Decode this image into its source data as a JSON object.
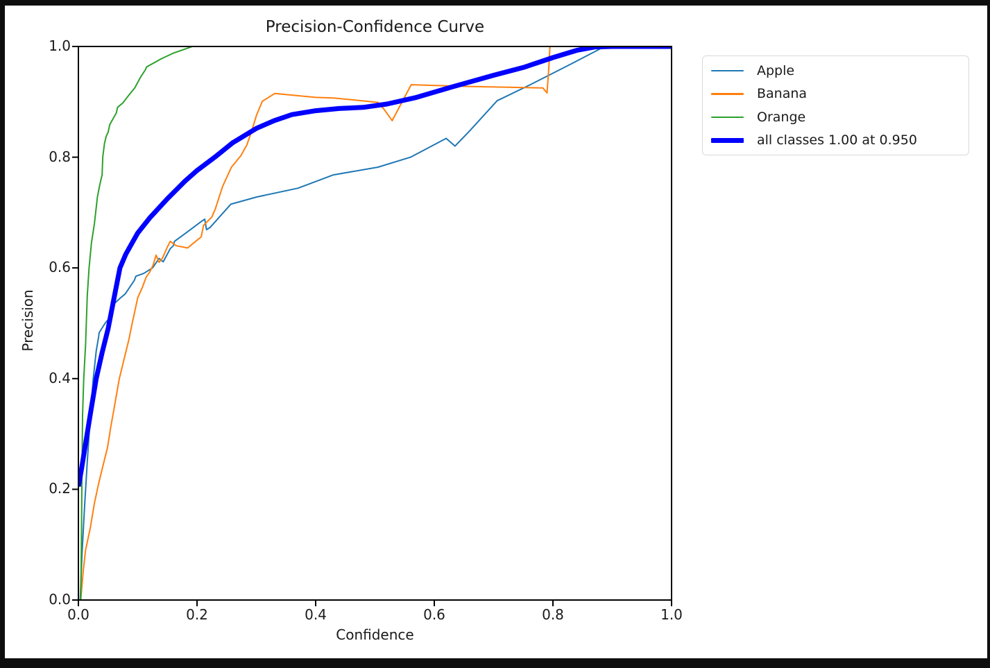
{
  "window": {
    "outer_background": "#0e0e0e",
    "figure_background": "#ffffff",
    "spine_color": "#000000",
    "text_color": "#1a1a1a",
    "legend_border_color": "#d8d8d8"
  },
  "chart_data": {
    "type": "line",
    "title": "Precision-Confidence Curve",
    "xlabel": "Confidence",
    "ylabel": "Precision",
    "xlim": [
      0.0,
      1.0
    ],
    "ylim": [
      0.0,
      1.0
    ],
    "x_ticks": [
      "0.0",
      "0.2",
      "0.4",
      "0.6",
      "0.8",
      "1.0"
    ],
    "y_ticks": [
      "0.0",
      "0.2",
      "0.4",
      "0.6",
      "0.8",
      "1.0"
    ],
    "grid": false,
    "legend_position": "upper-right-outside",
    "series": [
      {
        "name": "Apple",
        "color": "#1f77b4",
        "line_width": 2,
        "points": [
          [
            0.003,
            0.0
          ],
          [
            0.006,
            0.08
          ],
          [
            0.01,
            0.16
          ],
          [
            0.015,
            0.25
          ],
          [
            0.02,
            0.33
          ],
          [
            0.025,
            0.4
          ],
          [
            0.03,
            0.45
          ],
          [
            0.034,
            0.475
          ],
          [
            0.035,
            0.483
          ],
          [
            0.045,
            0.5
          ],
          [
            0.057,
            0.515
          ],
          [
            0.06,
            0.535
          ],
          [
            0.07,
            0.545
          ],
          [
            0.079,
            0.553
          ],
          [
            0.094,
            0.577
          ],
          [
            0.097,
            0.585
          ],
          [
            0.11,
            0.59
          ],
          [
            0.125,
            0.6
          ],
          [
            0.136,
            0.617
          ],
          [
            0.143,
            0.611
          ],
          [
            0.155,
            0.635
          ],
          [
            0.16,
            0.64
          ],
          [
            0.162,
            0.648
          ],
          [
            0.18,
            0.662
          ],
          [
            0.21,
            0.686
          ],
          [
            0.213,
            0.688
          ],
          [
            0.216,
            0.669
          ],
          [
            0.222,
            0.673
          ],
          [
            0.257,
            0.715
          ],
          [
            0.3,
            0.728
          ],
          [
            0.37,
            0.744
          ],
          [
            0.43,
            0.768
          ],
          [
            0.505,
            0.782
          ],
          [
            0.56,
            0.8
          ],
          [
            0.62,
            0.834
          ],
          [
            0.635,
            0.82
          ],
          [
            0.66,
            0.848
          ],
          [
            0.706,
            0.902
          ],
          [
            0.76,
            0.93
          ],
          [
            0.83,
            0.968
          ],
          [
            0.88,
            0.996
          ],
          [
            0.89,
            1.0
          ],
          [
            1.0,
            1.0
          ]
        ]
      },
      {
        "name": "Banana",
        "color": "#ff7f0e",
        "line_width": 2,
        "points": [
          [
            0.004,
            0.0
          ],
          [
            0.008,
            0.05
          ],
          [
            0.012,
            0.09
          ],
          [
            0.02,
            0.13
          ],
          [
            0.027,
            0.175
          ],
          [
            0.034,
            0.21
          ],
          [
            0.042,
            0.245
          ],
          [
            0.049,
            0.275
          ],
          [
            0.055,
            0.315
          ],
          [
            0.06,
            0.345
          ],
          [
            0.069,
            0.4
          ],
          [
            0.077,
            0.435
          ],
          [
            0.085,
            0.47
          ],
          [
            0.09,
            0.496
          ],
          [
            0.1,
            0.546
          ],
          [
            0.108,
            0.565
          ],
          [
            0.114,
            0.583
          ],
          [
            0.12,
            0.592
          ],
          [
            0.126,
            0.605
          ],
          [
            0.131,
            0.623
          ],
          [
            0.136,
            0.61
          ],
          [
            0.142,
            0.618
          ],
          [
            0.15,
            0.638
          ],
          [
            0.155,
            0.648
          ],
          [
            0.165,
            0.64
          ],
          [
            0.175,
            0.638
          ],
          [
            0.184,
            0.636
          ],
          [
            0.2,
            0.65
          ],
          [
            0.207,
            0.656
          ],
          [
            0.211,
            0.677
          ],
          [
            0.225,
            0.692
          ],
          [
            0.231,
            0.707
          ],
          [
            0.243,
            0.747
          ],
          [
            0.258,
            0.782
          ],
          [
            0.274,
            0.803
          ],
          [
            0.284,
            0.822
          ],
          [
            0.292,
            0.847
          ],
          [
            0.3,
            0.875
          ],
          [
            0.31,
            0.901
          ],
          [
            0.331,
            0.915
          ],
          [
            0.4,
            0.908
          ],
          [
            0.43,
            0.907
          ],
          [
            0.505,
            0.899
          ],
          [
            0.515,
            0.887
          ],
          [
            0.529,
            0.866
          ],
          [
            0.561,
            0.931
          ],
          [
            0.65,
            0.928
          ],
          [
            0.783,
            0.925
          ],
          [
            0.79,
            0.916
          ],
          [
            0.793,
            0.96
          ],
          [
            0.795,
            1.0
          ],
          [
            1.0,
            1.0
          ]
        ]
      },
      {
        "name": "Orange",
        "color": "#2ca02c",
        "line_width": 2,
        "points": [
          [
            0.004,
            0.0
          ],
          [
            0.005,
            0.1
          ],
          [
            0.006,
            0.22
          ],
          [
            0.007,
            0.334
          ],
          [
            0.009,
            0.4
          ],
          [
            0.012,
            0.46
          ],
          [
            0.015,
            0.55
          ],
          [
            0.018,
            0.6
          ],
          [
            0.022,
            0.645
          ],
          [
            0.027,
            0.68
          ],
          [
            0.032,
            0.728
          ],
          [
            0.036,
            0.75
          ],
          [
            0.04,
            0.768
          ],
          [
            0.041,
            0.8
          ],
          [
            0.044,
            0.825
          ],
          [
            0.047,
            0.838
          ],
          [
            0.05,
            0.845
          ],
          [
            0.053,
            0.859
          ],
          [
            0.064,
            0.88
          ],
          [
            0.066,
            0.89
          ],
          [
            0.075,
            0.898
          ],
          [
            0.085,
            0.912
          ],
          [
            0.095,
            0.925
          ],
          [
            0.105,
            0.945
          ],
          [
            0.113,
            0.958
          ],
          [
            0.115,
            0.963
          ],
          [
            0.14,
            0.978
          ],
          [
            0.16,
            0.988
          ],
          [
            0.192,
            1.0
          ],
          [
            1.0,
            1.0
          ]
        ]
      },
      {
        "name": "all classes 1.00 at 0.950",
        "color": "#0000ff",
        "line_width": 7,
        "points": [
          [
            0.0,
            0.205
          ],
          [
            0.005,
            0.235
          ],
          [
            0.01,
            0.268
          ],
          [
            0.02,
            0.335
          ],
          [
            0.03,
            0.4
          ],
          [
            0.04,
            0.447
          ],
          [
            0.05,
            0.49
          ],
          [
            0.06,
            0.545
          ],
          [
            0.07,
            0.6
          ],
          [
            0.08,
            0.625
          ],
          [
            0.1,
            0.663
          ],
          [
            0.12,
            0.69
          ],
          [
            0.15,
            0.725
          ],
          [
            0.18,
            0.757
          ],
          [
            0.2,
            0.776
          ],
          [
            0.23,
            0.8
          ],
          [
            0.26,
            0.826
          ],
          [
            0.3,
            0.852
          ],
          [
            0.33,
            0.866
          ],
          [
            0.36,
            0.877
          ],
          [
            0.4,
            0.884
          ],
          [
            0.44,
            0.888
          ],
          [
            0.48,
            0.89
          ],
          [
            0.52,
            0.896
          ],
          [
            0.57,
            0.908
          ],
          [
            0.63,
            0.927
          ],
          [
            0.7,
            0.948
          ],
          [
            0.75,
            0.962
          ],
          [
            0.8,
            0.98
          ],
          [
            0.84,
            0.993
          ],
          [
            0.87,
            0.999
          ],
          [
            0.9,
            1.0
          ],
          [
            1.0,
            1.0
          ]
        ]
      }
    ]
  },
  "legend": {
    "entries": [
      {
        "label": "Apple",
        "color": "#1f77b4",
        "thick": false
      },
      {
        "label": "Banana",
        "color": "#ff7f0e",
        "thick": false
      },
      {
        "label": "Orange",
        "color": "#2ca02c",
        "thick": false
      },
      {
        "label": "all classes 1.00 at 0.950",
        "color": "#0000ff",
        "thick": true
      }
    ]
  }
}
